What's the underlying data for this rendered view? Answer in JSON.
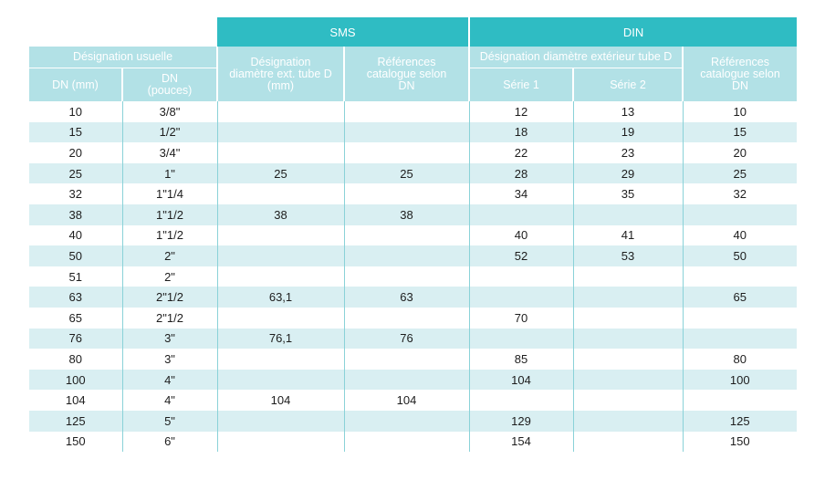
{
  "groups": {
    "sms": "SMS",
    "din": "DIN"
  },
  "headers": {
    "designation_usuelle": "Désignation usuelle",
    "dn_mm": "DN (mm)",
    "dn_pouces": "DN (pouces)",
    "sms_diam": "Désignation diamètre ext. tube D (mm)",
    "sms_ref": "Références catalogue selon DN",
    "din_diam": "Désignation diamètre extérieur tube D",
    "serie1": "Série 1",
    "serie2": "Série 2",
    "din_ref": "Références catalogue selon DN"
  },
  "rows": [
    [
      "10",
      "3/8\"",
      "",
      "",
      "12",
      "13",
      "10"
    ],
    [
      "15",
      "1/2\"",
      "",
      "",
      "18",
      "19",
      "15"
    ],
    [
      "20",
      "3/4\"",
      "",
      "",
      "22",
      "23",
      "20"
    ],
    [
      "25",
      "1\"",
      "25",
      "25",
      "28",
      "29",
      "25"
    ],
    [
      "32",
      "1\"1/4",
      "",
      "",
      "34",
      "35",
      "32"
    ],
    [
      "38",
      "1\"1/2",
      "38",
      "38",
      "",
      "",
      ""
    ],
    [
      "40",
      "1\"1/2",
      "",
      "",
      "40",
      "41",
      "40"
    ],
    [
      "50",
      "2\"",
      "",
      "",
      "52",
      "53",
      "50"
    ],
    [
      "51",
      "2\"",
      "",
      "",
      "",
      "",
      ""
    ],
    [
      "63",
      "2\"1/2",
      "63,1",
      "63",
      "",
      "",
      "65"
    ],
    [
      "65",
      "2\"1/2",
      "",
      "",
      "70",
      "",
      ""
    ],
    [
      "76",
      "3\"",
      "76,1",
      "76",
      "",
      "",
      ""
    ],
    [
      "80",
      "3\"",
      "",
      "",
      "85",
      "",
      "80"
    ],
    [
      "100",
      "4\"",
      "",
      "",
      "104",
      "",
      "100"
    ],
    [
      "104",
      "4\"",
      "104",
      "104",
      "",
      "",
      ""
    ],
    [
      "125",
      "5\"",
      "",
      "",
      "129",
      "",
      "125"
    ],
    [
      "150",
      "6\"",
      "",
      "",
      "154",
      "",
      "150"
    ]
  ]
}
